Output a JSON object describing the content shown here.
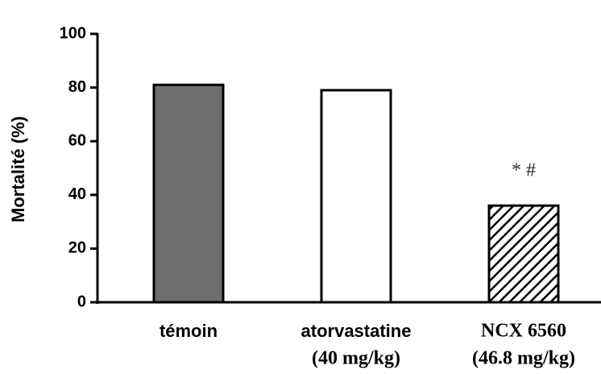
{
  "chart_data": {
    "type": "bar",
    "y_label": "Mortalité (%)",
    "categories": [
      "témoin",
      "atorvastatine",
      "NCX 6560"
    ],
    "category_sublabels": [
      null,
      "(40 mg/kg)",
      "(46.8 mg/kg)"
    ],
    "values": [
      81,
      79,
      36
    ],
    "fills": [
      "#6e6e6e",
      "#ffffff",
      "hatched"
    ],
    "annotation": "* #",
    "ylim": [
      0,
      100
    ],
    "yticks": [
      0,
      20,
      40,
      60,
      80,
      100
    ],
    "grid": false
  }
}
